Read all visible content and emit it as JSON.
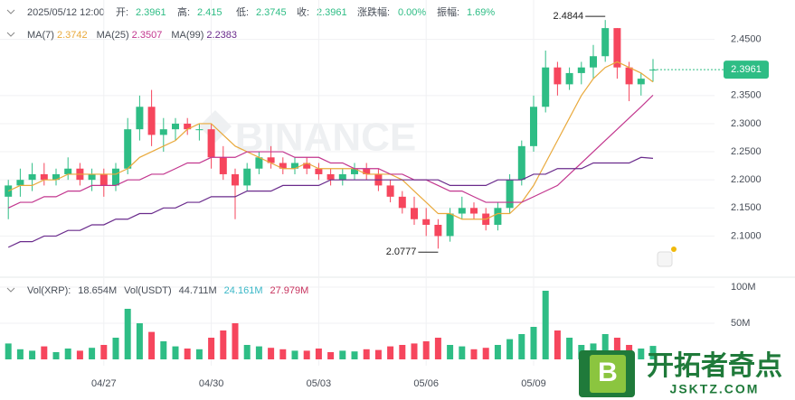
{
  "chart_data": {
    "type": "candlestick",
    "header": {
      "time": "2025/05/12 12:00",
      "open_label": "开:",
      "high_label": "高:",
      "low_label": "低:",
      "close_label": "收:",
      "change_label": "涨跌幅:",
      "change": "0.00%",
      "amplitude_label": "振幅:",
      "amplitude": "1.69%"
    },
    "watermark": "BINANCE",
    "up_color": "#2ebd85",
    "down_color": "#f6465d",
    "categories": [
      null,
      null,
      null,
      null,
      null,
      null,
      null,
      null,
      "04/27",
      null,
      null,
      null,
      null,
      null,
      null,
      null,
      null,
      "04/30",
      null,
      null,
      null,
      null,
      null,
      null,
      null,
      null,
      "05/03",
      null,
      null,
      null,
      null,
      null,
      null,
      null,
      null,
      "05/06",
      null,
      null,
      null,
      null,
      null,
      null,
      null,
      null,
      "05/09",
      null,
      null,
      null,
      null,
      null,
      null,
      null,
      null,
      null,
      null
    ],
    "open": [
      2.17,
      2.19,
      2.2,
      2.21,
      2.2,
      2.21,
      2.22,
      2.2,
      2.21,
      2.19,
      2.22,
      2.29,
      2.33,
      2.28,
      2.29,
      2.3,
      2.29,
      2.29,
      2.24,
      2.21,
      2.19,
      2.22,
      2.24,
      2.23,
      2.22,
      2.23,
      2.22,
      2.21,
      2.2,
      2.21,
      2.22,
      2.21,
      2.19,
      2.17,
      2.15,
      2.13,
      2.12,
      2.1,
      2.14,
      2.15,
      2.14,
      2.12,
      2.15,
      2.2,
      2.26,
      2.33,
      2.4,
      2.37,
      2.39,
      2.4,
      2.42,
      2.47,
      2.4,
      2.37,
      2.3961
    ],
    "high": [
      2.2,
      2.22,
      2.23,
      2.23,
      2.22,
      2.24,
      2.23,
      2.22,
      2.22,
      2.23,
      2.31,
      2.35,
      2.36,
      2.31,
      2.31,
      2.31,
      2.3,
      2.3,
      2.26,
      2.22,
      2.23,
      2.25,
      2.26,
      2.24,
      2.24,
      2.24,
      2.23,
      2.22,
      2.22,
      2.23,
      2.23,
      2.22,
      2.2,
      2.18,
      2.17,
      2.15,
      2.13,
      2.15,
      2.17,
      2.16,
      2.15,
      2.16,
      2.21,
      2.27,
      2.35,
      2.43,
      2.41,
      2.4,
      2.41,
      2.44,
      2.4844,
      2.47,
      2.41,
      2.39,
      2.415
    ],
    "low": [
      2.13,
      2.17,
      2.18,
      2.19,
      2.19,
      2.2,
      2.19,
      2.18,
      2.17,
      2.18,
      2.21,
      2.27,
      2.26,
      2.25,
      2.27,
      2.28,
      2.27,
      2.22,
      2.2,
      2.13,
      2.18,
      2.21,
      2.22,
      2.21,
      2.21,
      2.21,
      2.2,
      2.19,
      2.19,
      2.2,
      2.2,
      2.18,
      2.16,
      2.14,
      2.12,
      2.1,
      2.0777,
      2.09,
      2.13,
      2.13,
      2.11,
      2.11,
      2.14,
      2.19,
      2.25,
      2.32,
      2.35,
      2.36,
      2.37,
      2.38,
      2.41,
      2.38,
      2.34,
      2.35,
      2.3745
    ],
    "close": [
      2.19,
      2.2,
      2.21,
      2.2,
      2.21,
      2.22,
      2.2,
      2.21,
      2.19,
      2.22,
      2.29,
      2.33,
      2.28,
      2.29,
      2.3,
      2.29,
      2.29,
      2.24,
      2.21,
      2.19,
      2.22,
      2.24,
      2.23,
      2.22,
      2.23,
      2.22,
      2.21,
      2.2,
      2.21,
      2.22,
      2.21,
      2.19,
      2.17,
      2.15,
      2.13,
      2.12,
      2.1,
      2.14,
      2.15,
      2.14,
      2.12,
      2.15,
      2.2,
      2.26,
      2.33,
      2.4,
      2.37,
      2.39,
      2.4,
      2.42,
      2.47,
      2.4,
      2.37,
      2.38,
      2.3961
    ],
    "volume": [
      22,
      14,
      12,
      18,
      10,
      15,
      12,
      16,
      20,
      30,
      70,
      50,
      38,
      25,
      18,
      15,
      14,
      30,
      40,
      50,
      20,
      18,
      16,
      14,
      12,
      12,
      15,
      10,
      12,
      11,
      14,
      13,
      18,
      20,
      22,
      25,
      30,
      20,
      18,
      14,
      16,
      20,
      28,
      35,
      45,
      95,
      40,
      30,
      20,
      22,
      35,
      30,
      20,
      15,
      18.654
    ],
    "ma": [
      {
        "name": "MA(7)",
        "color": "#e9a93b",
        "values": [
          2.18,
          2.19,
          2.19,
          2.2,
          2.2,
          2.21,
          2.21,
          2.21,
          2.21,
          2.21,
          2.22,
          2.24,
          2.25,
          2.26,
          2.27,
          2.29,
          2.3,
          2.3,
          2.28,
          2.26,
          2.25,
          2.24,
          2.23,
          2.22,
          2.22,
          2.23,
          2.22,
          2.22,
          2.22,
          2.22,
          2.21,
          2.21,
          2.21,
          2.2,
          2.18,
          2.16,
          2.14,
          2.14,
          2.13,
          2.13,
          2.13,
          2.14,
          2.14,
          2.16,
          2.19,
          2.23,
          2.27,
          2.31,
          2.35,
          2.38,
          2.4,
          2.41,
          2.4,
          2.39,
          2.3742
        ]
      },
      {
        "name": "MA(25)",
        "color": "#c2368e",
        "values": [
          2.15,
          2.16,
          2.16,
          2.17,
          2.17,
          2.18,
          2.18,
          2.19,
          2.19,
          2.19,
          2.2,
          2.2,
          2.21,
          2.21,
          2.22,
          2.23,
          2.23,
          2.24,
          2.24,
          2.24,
          2.25,
          2.25,
          2.25,
          2.25,
          2.24,
          2.24,
          2.24,
          2.23,
          2.23,
          2.22,
          2.22,
          2.22,
          2.21,
          2.21,
          2.2,
          2.2,
          2.19,
          2.18,
          2.18,
          2.17,
          2.16,
          2.16,
          2.16,
          2.16,
          2.17,
          2.18,
          2.19,
          2.21,
          2.23,
          2.25,
          2.27,
          2.29,
          2.31,
          2.33,
          2.3507
        ]
      },
      {
        "name": "MA(99)",
        "color": "#6a2b8c",
        "values": [
          2.08,
          2.09,
          2.09,
          2.1,
          2.1,
          2.11,
          2.11,
          2.12,
          2.12,
          2.13,
          2.13,
          2.14,
          2.14,
          2.15,
          2.15,
          2.16,
          2.16,
          2.17,
          2.17,
          2.17,
          2.18,
          2.18,
          2.18,
          2.19,
          2.19,
          2.19,
          2.19,
          2.2,
          2.2,
          2.2,
          2.2,
          2.2,
          2.2,
          2.2,
          2.2,
          2.2,
          2.2,
          2.19,
          2.19,
          2.19,
          2.19,
          2.2,
          2.2,
          2.2,
          2.21,
          2.21,
          2.22,
          2.22,
          2.22,
          2.23,
          2.23,
          2.23,
          2.23,
          2.24,
          2.2383
        ]
      }
    ],
    "ylim": [
      2.03,
      2.52
    ],
    "yticks": [
      {
        "value": 2.1,
        "label": "2.1000"
      },
      {
        "value": 2.15,
        "label": "2.1500"
      },
      {
        "value": 2.2,
        "label": "2.2000"
      },
      {
        "value": 2.25,
        "label": "2.2500"
      },
      {
        "value": 2.3,
        "label": "2.3000"
      },
      {
        "value": 2.35,
        "label": "2.3500"
      },
      {
        "value": 2.45,
        "label": "2.4500"
      }
    ],
    "volume_legend": [
      "Vol(XRP):",
      "18.654M",
      "Vol(USDT)",
      "44.711M",
      "24.161M",
      "27.979M"
    ],
    "vol_ylim": [
      0,
      107.5
    ],
    "vol_yticks": [
      {
        "value": 50,
        "label": "50M"
      },
      {
        "value": 100,
        "label": "100M"
      }
    ],
    "grid": true,
    "logo": {
      "name": "开拓者奇点",
      "site": "JSKTZ.COM"
    }
  }
}
